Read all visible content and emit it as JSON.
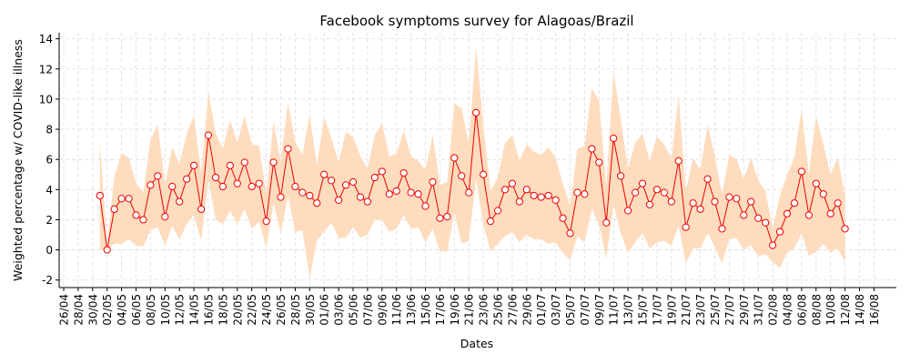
{
  "chart_data": {
    "type": "line",
    "title": "Facebook symptoms survey for Alagoas/Brazil",
    "xlabel": "Dates",
    "ylabel": "Weighted percentage w/ COVID-like illness",
    "ylim": [
      -2.5,
      14.4
    ],
    "yticks": [
      -2,
      0,
      2,
      4,
      6,
      8,
      10,
      12,
      14
    ],
    "grid": true,
    "x_start_label": "26/04",
    "x_tick_labels": [
      "26/04",
      "28/04",
      "30/04",
      "02/05",
      "04/05",
      "06/05",
      "08/05",
      "10/05",
      "12/05",
      "14/05",
      "16/05",
      "18/05",
      "20/05",
      "22/05",
      "24/05",
      "26/05",
      "28/05",
      "30/05",
      "01/06",
      "03/06",
      "05/06",
      "07/06",
      "09/06",
      "11/06",
      "13/06",
      "15/06",
      "17/06",
      "19/06",
      "21/06",
      "23/06",
      "25/06",
      "27/06",
      "29/06",
      "01/07",
      "03/07",
      "05/07",
      "07/07",
      "09/07",
      "11/07",
      "13/07",
      "15/07",
      "17/07",
      "19/07",
      "21/07",
      "23/07",
      "25/07",
      "27/07",
      "29/07",
      "31/07",
      "02/08",
      "04/08",
      "06/08",
      "08/08",
      "10/08",
      "12/08",
      "14/08",
      "16/08"
    ],
    "first_point_date": "01/05",
    "series": [
      {
        "kind": "mean",
        "color": "#ee0000",
        "marker_fill": "#ffffff",
        "values": [
          3.6,
          0.0,
          2.7,
          3.4,
          3.4,
          2.3,
          2.0,
          4.3,
          4.9,
          2.2,
          4.2,
          3.2,
          4.7,
          5.6,
          2.7,
          7.6,
          4.8,
          4.2,
          5.6,
          4.4,
          5.8,
          4.2,
          4.4,
          1.9,
          5.8,
          3.5,
          6.7,
          4.2,
          3.8,
          3.6,
          3.1,
          5.0,
          4.6,
          3.3,
          4.3,
          4.5,
          3.5,
          3.2,
          4.8,
          5.2,
          3.7,
          3.9,
          5.1,
          3.8,
          3.7,
          2.9,
          4.5,
          2.1,
          2.2,
          6.1,
          4.9,
          3.8,
          9.1,
          5.0,
          1.9,
          2.6,
          4.0,
          4.4,
          3.2,
          4.0,
          3.6,
          3.5,
          3.6,
          3.3,
          2.1,
          1.1,
          3.8,
          3.7,
          6.7,
          5.8,
          1.8,
          7.4,
          4.9,
          2.6,
          3.8,
          4.4,
          3.0,
          4.0,
          3.8,
          3.2,
          5.9,
          1.5,
          3.1,
          2.7,
          4.7,
          3.2,
          1.4,
          3.5,
          3.4,
          2.3,
          3.2,
          2.1,
          1.8,
          0.3,
          1.2,
          2.4,
          3.1,
          5.2,
          2.3,
          4.4,
          3.7,
          2.4,
          3.1,
          1.4
        ]
      },
      {
        "kind": "upper-bound",
        "color": "#ffdcbe",
        "values": [
          7.2,
          0.3,
          4.9,
          6.4,
          6.1,
          4.4,
          3.8,
          7.3,
          8.3,
          4.3,
          6.8,
          5.7,
          7.7,
          8.9,
          5.1,
          10.5,
          7.7,
          6.7,
          8.6,
          7.1,
          8.9,
          7.0,
          6.9,
          3.7,
          8.5,
          5.9,
          9.8,
          7.2,
          6.3,
          9.0,
          5.6,
          8.8,
          7.4,
          5.8,
          7.8,
          7.5,
          6.2,
          5.4,
          7.6,
          8.4,
          6.2,
          6.4,
          7.9,
          6.2,
          5.9,
          5.3,
          7.6,
          4.3,
          4.5,
          9.7,
          9.4,
          7.0,
          13.5,
          8.3,
          3.9,
          4.8,
          7.1,
          7.6,
          5.9,
          7.0,
          6.5,
          6.3,
          6.8,
          6.1,
          4.4,
          2.9,
          6.7,
          6.9,
          10.7,
          9.9,
          4.2,
          11.8,
          8.7,
          5.4,
          7.1,
          7.7,
          5.9,
          7.5,
          7.0,
          6.1,
          10.2,
          3.9,
          6.1,
          5.3,
          8.3,
          6.2,
          3.7,
          6.3,
          6.0,
          4.7,
          6.1,
          4.6,
          3.9,
          1.4,
          3.6,
          5.0,
          6.1,
          9.3,
          5.0,
          8.9,
          7.0,
          5.0,
          6.1,
          3.6
        ]
      },
      {
        "kind": "lower-bound",
        "color": "#ffdcbe",
        "values": [
          0.0,
          0.0,
          0.4,
          0.4,
          0.7,
          0.3,
          0.2,
          1.3,
          1.5,
          0.3,
          1.6,
          0.7,
          1.7,
          2.3,
          0.6,
          4.7,
          2.0,
          1.7,
          2.6,
          1.7,
          2.7,
          1.4,
          1.9,
          0.1,
          3.1,
          1.1,
          3.6,
          1.2,
          1.3,
          -1.9,
          0.6,
          1.2,
          1.8,
          0.8,
          0.8,
          1.5,
          0.8,
          1.0,
          2.0,
          2.0,
          1.2,
          1.4,
          2.3,
          1.4,
          1.5,
          0.5,
          1.4,
          -0.1,
          -0.1,
          2.5,
          0.4,
          0.6,
          4.7,
          1.7,
          -0.1,
          0.4,
          0.9,
          1.2,
          0.5,
          1.0,
          0.7,
          0.7,
          0.4,
          0.5,
          -0.2,
          -0.7,
          0.9,
          0.5,
          2.7,
          1.7,
          -0.6,
          3.0,
          1.1,
          -0.2,
          0.5,
          1.1,
          0.1,
          0.5,
          0.6,
          0.3,
          1.6,
          -0.9,
          0.1,
          0.1,
          1.1,
          0.2,
          -0.9,
          0.7,
          0.8,
          0.0,
          0.3,
          -0.4,
          -0.3,
          -0.8,
          -1.2,
          -0.2,
          0.1,
          1.1,
          -0.4,
          -0.1,
          0.4,
          -0.2,
          0.1,
          -0.8
        ]
      }
    ]
  }
}
